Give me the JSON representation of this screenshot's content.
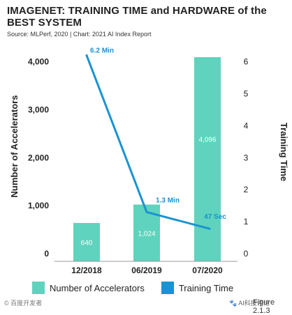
{
  "chart_data": {
    "type": "bar",
    "title": "IMAGENET: TRAINING TIME and HARDWARE of the BEST SYSTEM",
    "subtitle": "Source: MLPerf, 2020 | Chart: 2021 AI Index Report",
    "categories": [
      "12/2018",
      "06/2019",
      "07/2020"
    ],
    "series": [
      {
        "name": "Number of Accelerators",
        "type": "bar",
        "axis": "left",
        "values": [
          640,
          1024,
          4096
        ],
        "labels": [
          "640",
          "1,024",
          "4,096"
        ],
        "color": "#5fd3bd"
      },
      {
        "name": "Training Time",
        "type": "line",
        "axis": "right",
        "values": [
          6.2,
          1.3,
          0.78
        ],
        "labels": [
          "6.2 Min",
          "1.3 Min",
          "47 Sec"
        ],
        "color": "#1a93d1"
      }
    ],
    "ylabel_left": "Number of Accelerators",
    "ylabel_right": "Training Time",
    "ylim_left": [
      0,
      4300
    ],
    "ylim_right": [
      0,
      6.45
    ],
    "yticks_left": [
      0,
      1000,
      2000,
      3000,
      4000
    ],
    "yticks_left_labels": [
      "0",
      "1,000",
      "2,000",
      "3,000",
      "4,000"
    ],
    "yticks_right": [
      0,
      1,
      2,
      3,
      4,
      5,
      6
    ],
    "yticks_right_labels": [
      "0",
      "1",
      "2",
      "3",
      "4",
      "5",
      "6"
    ],
    "grid": false,
    "legend": "bottom"
  },
  "footer": {
    "figure_label": "Figure 2.1.3",
    "watermark_left": "© 百度开发者",
    "watermark_right": "🐾 AI科技评论"
  }
}
